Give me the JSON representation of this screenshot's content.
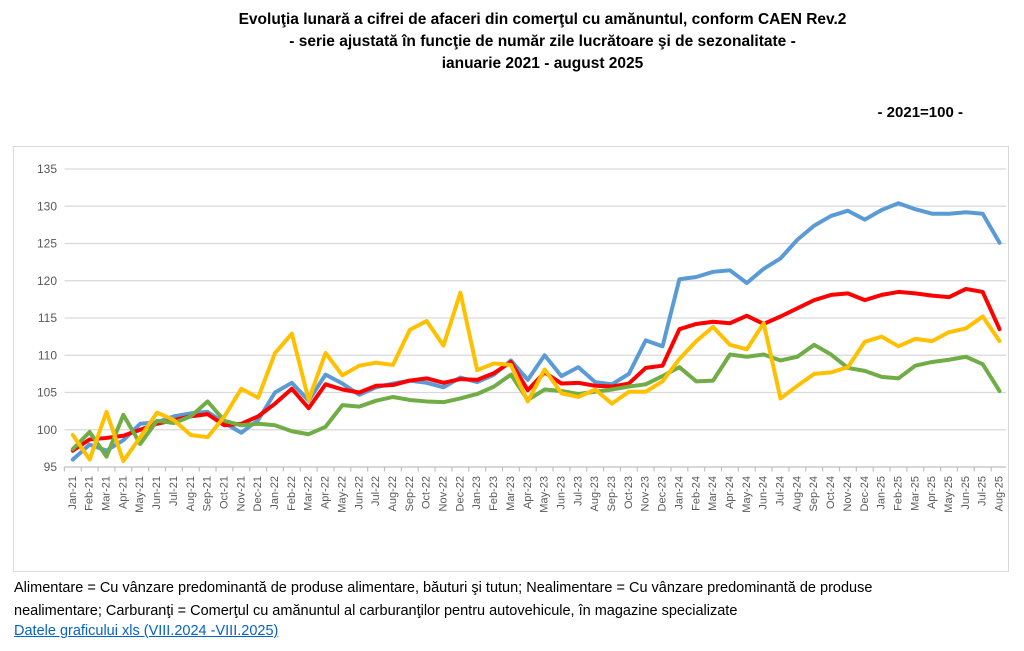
{
  "title": {
    "line1": "Evoluţia lunară a cifrei de afaceri din comerţul cu amănuntul, conform CAEN Rev.2",
    "line2": "- serie ajustată în funcţie de număr zile lucrătoare şi de sezonalitate -",
    "line3": "ianuarie 2021 - august 2025"
  },
  "index_note": "- 2021=100 -",
  "footnote": {
    "line1": "Alimentare = Cu vânzare predominantă de produse alimentare, băuturi şi tutun; Nealimentare = Cu vânzare predominantă de produse",
    "line2": "nealimentare; Carburanţi = Comerţul cu amănuntul al carburanţilor pentru autovehicule, în magazine specializate"
  },
  "link_text": "Datele graficului xls (VIII.2024 -VIII.2025)",
  "chart_data": {
    "type": "line",
    "title": "Evoluţia lunară a cifrei de afaceri din comerţul cu amănuntul, conform CAEN Rev.2 - serie ajustată - ianuarie 2021 - august 2025 (2021=100)",
    "xlabel": "",
    "ylabel": "",
    "ylim": [
      95,
      135
    ],
    "ytick_step": 5,
    "grid": true,
    "legend_position": "none",
    "axis_text_color": "#595959",
    "x": [
      "Jan-21",
      "Feb-21",
      "Mar-21",
      "Apr-21",
      "May-21",
      "Jun-21",
      "Jul-21",
      "Aug-21",
      "Sep-21",
      "Oct-21",
      "Nov-21",
      "Dec-21",
      "Jan-22",
      "Feb-22",
      "Mar-22",
      "Apr-22",
      "May-22",
      "Jun-22",
      "Jul-22",
      "Aug-22",
      "Sep-22",
      "Oct-22",
      "Nov-22",
      "Dec-22",
      "Jan-23",
      "Feb-23",
      "Mar-23",
      "Apr-23",
      "May-23",
      "Jun-23",
      "Jul-23",
      "Aug-23",
      "Sep-23",
      "Oct-23",
      "Nov-23",
      "Dec-23",
      "Jan-24",
      "Feb-24",
      "Mar-24",
      "Apr-24",
      "May-24",
      "Jun-24",
      "Jul-24",
      "Aug-24",
      "Sep-24",
      "Oct-24",
      "Nov-24",
      "Dec-24",
      "Jan-25",
      "Feb-25",
      "Mar-25",
      "Apr-25",
      "May-25",
      "Jun-25",
      "Jul-25",
      "Aug-25"
    ],
    "series": [
      {
        "name": "blue",
        "color": "#5B9BD5",
        "values": [
          96.0,
          98.0,
          97.2,
          98.6,
          100.8,
          101.0,
          101.8,
          102.2,
          102.4,
          100.9,
          99.6,
          101.3,
          105.0,
          106.3,
          103.9,
          107.4,
          106.2,
          104.7,
          105.7,
          106.2,
          106.6,
          106.3,
          105.7,
          107.0,
          106.4,
          107.4,
          109.3,
          106.7,
          110.0,
          107.2,
          108.4,
          106.4,
          106.1,
          107.5,
          112.0,
          111.2,
          120.2,
          120.5,
          121.2,
          121.4,
          119.7,
          121.6,
          123.0,
          125.5,
          127.4,
          128.7,
          129.4,
          128.2,
          129.5,
          130.4,
          129.6,
          129.0,
          129.0,
          129.2,
          129.0,
          125.1
        ]
      },
      {
        "name": "red",
        "color": "#FF0000",
        "values": [
          97.2,
          98.7,
          98.9,
          99.2,
          100.0,
          100.8,
          101.3,
          101.8,
          102.1,
          100.6,
          100.8,
          101.8,
          103.5,
          105.5,
          102.9,
          106.1,
          105.4,
          105.0,
          105.9,
          106.0,
          106.6,
          106.9,
          106.3,
          106.8,
          106.7,
          107.6,
          109.1,
          105.3,
          107.7,
          106.2,
          106.3,
          105.9,
          105.8,
          106.2,
          108.3,
          108.6,
          113.5,
          114.2,
          114.5,
          114.3,
          115.3,
          114.2,
          115.2,
          116.3,
          117.4,
          118.1,
          118.3,
          117.4,
          118.1,
          118.5,
          118.3,
          118.0,
          117.8,
          118.9,
          118.5,
          113.5
        ]
      },
      {
        "name": "green",
        "color": "#70AD47",
        "values": [
          97.4,
          99.7,
          96.4,
          102.0,
          98.1,
          101.2,
          100.9,
          101.8,
          103.8,
          101.2,
          100.6,
          100.8,
          100.6,
          99.8,
          99.4,
          100.4,
          103.3,
          103.1,
          103.9,
          104.4,
          104.0,
          103.8,
          103.7,
          104.2,
          104.8,
          105.8,
          107.4,
          104.0,
          105.4,
          105.2,
          104.8,
          105.1,
          105.4,
          105.8,
          106.1,
          107.2,
          108.4,
          106.5,
          106.6,
          110.1,
          109.8,
          110.1,
          109.3,
          109.8,
          111.4,
          110.1,
          108.3,
          107.9,
          107.1,
          106.9,
          108.6,
          109.1,
          109.4,
          109.8,
          108.8,
          105.2
        ]
      },
      {
        "name": "yellow",
        "color": "#FFC000",
        "values": [
          99.3,
          96.0,
          102.4,
          95.8,
          99.0,
          102.3,
          101.3,
          99.3,
          99.0,
          101.8,
          105.5,
          104.3,
          110.3,
          112.9,
          104.0,
          110.3,
          107.3,
          108.6,
          109.0,
          108.7,
          113.4,
          114.6,
          111.3,
          118.4,
          108.0,
          108.9,
          108.7,
          103.8,
          108.1,
          104.9,
          104.4,
          105.4,
          103.5,
          105.1,
          105.1,
          106.5,
          109.5,
          111.9,
          113.8,
          111.4,
          110.8,
          114.3,
          104.2,
          105.9,
          107.5,
          107.7,
          108.4,
          111.8,
          112.5,
          111.2,
          112.2,
          111.9,
          113.1,
          113.6,
          115.2,
          111.9
        ]
      }
    ]
  }
}
